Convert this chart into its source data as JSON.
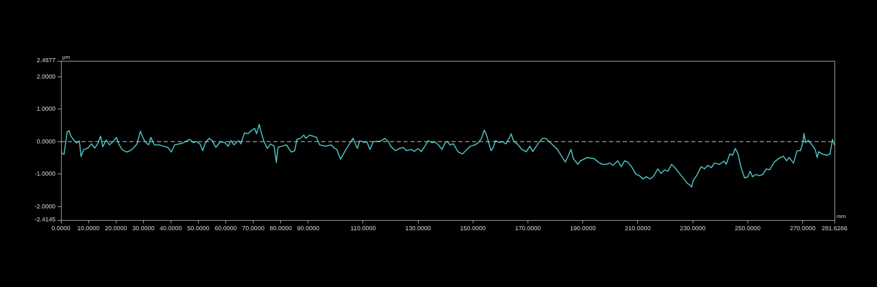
{
  "chart_data": {
    "type": "line",
    "ylabel": "μm",
    "xlabel": "mm",
    "x": [
      0,
      0.25,
      1.1,
      2.3,
      3.0,
      3.6,
      4.8,
      5.7,
      6.7,
      7.3,
      8.2,
      9.8,
      11.1,
      12.3,
      13.5,
      14.4,
      15.2,
      16.5,
      17.7,
      19.0,
      20.2,
      21.0,
      22.3,
      23.9,
      25.2,
      26.4,
      27.7,
      28.9,
      29.8,
      30.6,
      31.9,
      32.7,
      34.0,
      35.6,
      37.3,
      38.9,
      40.2,
      41.4,
      43.1,
      44.7,
      46.8,
      48.1,
      49.3,
      50.6,
      51.6,
      52.6,
      53.9,
      55.1,
      56.4,
      58.0,
      59.7,
      60.9,
      61.8,
      63.0,
      64.7,
      65.5,
      66.8,
      68.0,
      69.3,
      70.5,
      71.2,
      72.2,
      72.8,
      73.8,
      75.1,
      76.3,
      77.6,
      78.4,
      79.0,
      80.5,
      82.1,
      83.8,
      85.1,
      85.9,
      87.1,
      88.4,
      89.2,
      90.5,
      91.7,
      93.0,
      94.2,
      96.3,
      98.4,
      99.2,
      100.4,
      101.8,
      103.3,
      105.0,
      106.3,
      107.9,
      108.8,
      110.4,
      111.3,
      112.5,
      113.7,
      115.4,
      116.7,
      117.9,
      119.2,
      120.0,
      121.7,
      123.3,
      124.6,
      125.8,
      127.5,
      128.7,
      130.0,
      131.2,
      132.5,
      133.7,
      135.0,
      136.2,
      137.4,
      138.7,
      139.9,
      140.8,
      141.6,
      142.9,
      144.5,
      146.2,
      147.8,
      149.1,
      150.7,
      152.0,
      153.1,
      154.1,
      154.9,
      155.7,
      156.6,
      157.4,
      158.2,
      159.5,
      160.7,
      162.0,
      163.2,
      163.9,
      164.7,
      166.1,
      167.8,
      169.4,
      170.7,
      171.8,
      172.8,
      174.0,
      175.3,
      176.5,
      177.8,
      179.0,
      180.7,
      182.3,
      183.6,
      184.4,
      185.7,
      186.5,
      188.2,
      189.0,
      191.5,
      194.0,
      195.6,
      197.1,
      198.6,
      199.8,
      201.0,
      202.7,
      204.0,
      205.2,
      206.5,
      207.7,
      209.4,
      210.6,
      211.9,
      213.1,
      214.4,
      215.6,
      217.3,
      218.5,
      219.8,
      221.0,
      222.3,
      223.5,
      225.2,
      226.8,
      228.1,
      228.9,
      229.6,
      230.2,
      231.4,
      233.1,
      234.3,
      235.5,
      236.8,
      238.0,
      239.7,
      241.4,
      242.2,
      243.5,
      244.5,
      245.5,
      246.5,
      247.6,
      248.9,
      250.1,
      250.9,
      251.8,
      253.0,
      254.3,
      255.5,
      256.8,
      258.0,
      259.7,
      261.3,
      263.0,
      264.2,
      265.1,
      266.7,
      268.0,
      269.2,
      270.1,
      270.5,
      271.1,
      272.1,
      273.4,
      274.6,
      275.3,
      275.9,
      277.1,
      278.8,
      280.0,
      280.9,
      281.6
    ],
    "series": [
      {
        "color": "#4fc3c3",
        "values": [
          -0.18,
          -0.36,
          -0.39,
          0.31,
          0.33,
          0.17,
          0.03,
          -0.04,
          0.02,
          -0.46,
          -0.25,
          -0.2,
          -0.07,
          -0.2,
          -0.05,
          0.17,
          -0.16,
          0.05,
          -0.1,
          0.0,
          0.13,
          -0.07,
          -0.25,
          -0.32,
          -0.28,
          -0.2,
          -0.07,
          0.32,
          0.13,
          0.0,
          -0.1,
          0.13,
          -0.1,
          -0.1,
          -0.14,
          -0.18,
          -0.32,
          -0.1,
          -0.07,
          -0.03,
          0.07,
          -0.03,
          0.0,
          -0.07,
          -0.28,
          -0.03,
          0.1,
          0.03,
          -0.18,
          0.0,
          -0.03,
          -0.14,
          0.03,
          -0.1,
          0.03,
          -0.07,
          0.27,
          0.24,
          0.34,
          0.41,
          0.24,
          0.53,
          0.31,
          0.03,
          -0.21,
          -0.07,
          -0.14,
          -0.64,
          -0.18,
          -0.14,
          -0.1,
          -0.32,
          -0.28,
          0.07,
          0.1,
          0.2,
          0.1,
          0.2,
          0.17,
          0.13,
          -0.1,
          -0.14,
          -0.1,
          -0.18,
          -0.24,
          -0.54,
          -0.31,
          -0.07,
          0.1,
          -0.21,
          0.03,
          -0.03,
          0.0,
          -0.24,
          0.0,
          0.0,
          0.03,
          0.1,
          0.0,
          -0.14,
          -0.28,
          -0.21,
          -0.18,
          -0.28,
          -0.24,
          -0.3,
          -0.21,
          -0.31,
          -0.14,
          0.03,
          -0.03,
          -0.01,
          -0.1,
          -0.24,
          -0.03,
          0.0,
          -0.1,
          -0.07,
          -0.31,
          -0.38,
          -0.24,
          -0.14,
          -0.1,
          -0.03,
          0.1,
          0.35,
          0.21,
          -0.03,
          -0.28,
          -0.17,
          0.03,
          -0.03,
          0.0,
          -0.07,
          0.1,
          0.24,
          0.03,
          -0.07,
          -0.24,
          -0.31,
          -0.14,
          -0.31,
          -0.17,
          -0.03,
          0.1,
          0.1,
          0.0,
          -0.1,
          -0.24,
          -0.45,
          -0.63,
          -0.49,
          -0.24,
          -0.52,
          -0.7,
          -0.6,
          -0.49,
          -0.52,
          -0.63,
          -0.7,
          -0.7,
          -0.66,
          -0.73,
          -0.59,
          -0.77,
          -0.59,
          -0.64,
          -0.77,
          -1.01,
          -1.05,
          -1.15,
          -1.08,
          -1.15,
          -1.08,
          -0.84,
          -0.98,
          -0.87,
          -0.91,
          -0.7,
          -0.8,
          -0.98,
          -1.15,
          -1.29,
          -1.33,
          -1.4,
          -1.19,
          -1.05,
          -0.77,
          -0.84,
          -0.73,
          -0.8,
          -0.66,
          -0.7,
          -0.6,
          -0.7,
          -0.38,
          -0.42,
          -0.21,
          -0.38,
          -0.8,
          -1.12,
          -1.08,
          -0.91,
          -1.08,
          -1.01,
          -1.05,
          -1.01,
          -0.84,
          -0.87,
          -0.63,
          -0.52,
          -0.45,
          -0.59,
          -0.49,
          -0.66,
          -0.28,
          -0.28,
          -0.03,
          0.25,
          -0.03,
          0.04,
          -0.1,
          -0.24,
          -0.49,
          -0.31,
          -0.38,
          -0.42,
          -0.38,
          0.07,
          -0.1
        ]
      }
    ],
    "xlim": [
      0,
      281.6266
    ],
    "ylim": [
      -2.4145,
      2.4877
    ],
    "xticks": [
      {
        "value": 0,
        "label": "0.0000"
      },
      {
        "value": 10,
        "label": "10.0000"
      },
      {
        "value": 20,
        "label": "20.0000"
      },
      {
        "value": 30,
        "label": "30.0000"
      },
      {
        "value": 40,
        "label": "40.0000"
      },
      {
        "value": 50,
        "label": "50.0000"
      },
      {
        "value": 60,
        "label": "60.0000"
      },
      {
        "value": 70,
        "label": "70.0000"
      },
      {
        "value": 80,
        "label": "80.0000"
      },
      {
        "value": 90,
        "label": "90.0000"
      },
      {
        "value": 110,
        "label": "110.0000"
      },
      {
        "value": 130,
        "label": "130.0000"
      },
      {
        "value": 150,
        "label": "150.0000"
      },
      {
        "value": 170,
        "label": "170.0000"
      },
      {
        "value": 190,
        "label": "190.0000"
      },
      {
        "value": 210,
        "label": "210.0000"
      },
      {
        "value": 230,
        "label": "230.0000"
      },
      {
        "value": 250,
        "label": "250.0000"
      },
      {
        "value": 270,
        "label": "270.0000"
      },
      281.6266
    ],
    "yticks": [
      -2.4145,
      {
        "value": -2,
        "label": "-2.0000"
      },
      {
        "value": -1,
        "label": "-1.0000"
      },
      {
        "value": 0,
        "label": "0.0000"
      },
      {
        "value": 1,
        "label": "1.0000"
      },
      {
        "value": 2,
        "label": "2.0000"
      },
      2.4877
    ],
    "ref_lines": [
      {
        "axis": "y",
        "value": 0,
        "color": "#c8c8c8",
        "line_style": "dashed"
      }
    ],
    "marker": "none",
    "line_style": "solid"
  }
}
